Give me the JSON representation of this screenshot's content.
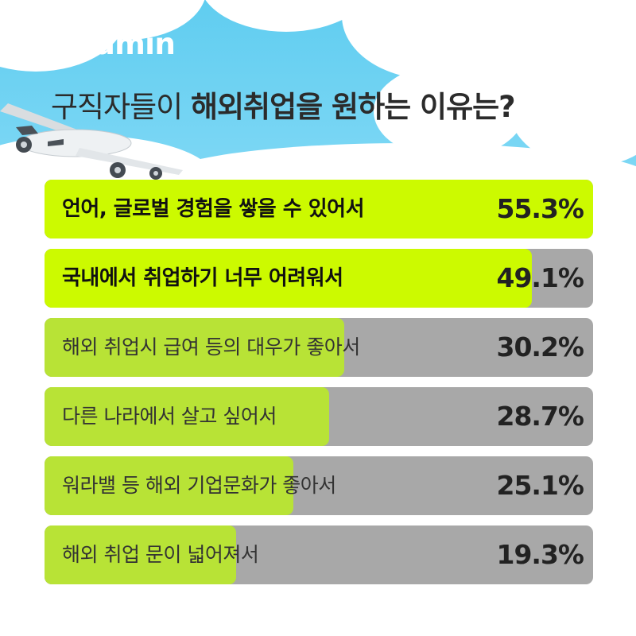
{
  "brand": "saramin",
  "title": {
    "part1": "구직자들이 ",
    "part2": "해외취업을 원하는 이유는?"
  },
  "colors": {
    "highlight_bar": "#ccfa00",
    "bar": "#b8e336",
    "track": "#a8a8a8",
    "sky": "#6fd3f3"
  },
  "chart_data": {
    "type": "bar",
    "orientation": "horizontal",
    "categories": [
      "언어, 글로벌 경험을 쌓을 수 있어서",
      "국내에서 취업하기 너무 어려워서",
      "해외 취업시 급여 등의 대우가 좋아서",
      "다른 나라에서 살고 싶어서",
      "워라밸 등 해외 기업문화가 좋아서",
      "해외 취업 문이 넓어져서"
    ],
    "values": [
      55.3,
      49.1,
      30.2,
      28.7,
      25.1,
      19.3
    ],
    "value_labels": [
      "55.3%",
      "49.1%",
      "30.2%",
      "28.7%",
      "25.1%",
      "19.3%"
    ],
    "highlighted": [
      true,
      true,
      false,
      false,
      false,
      false
    ],
    "title": "구직자들이 해외취업을 원하는 이유는?",
    "xlim": [
      0,
      55.3
    ],
    "grid": false
  }
}
